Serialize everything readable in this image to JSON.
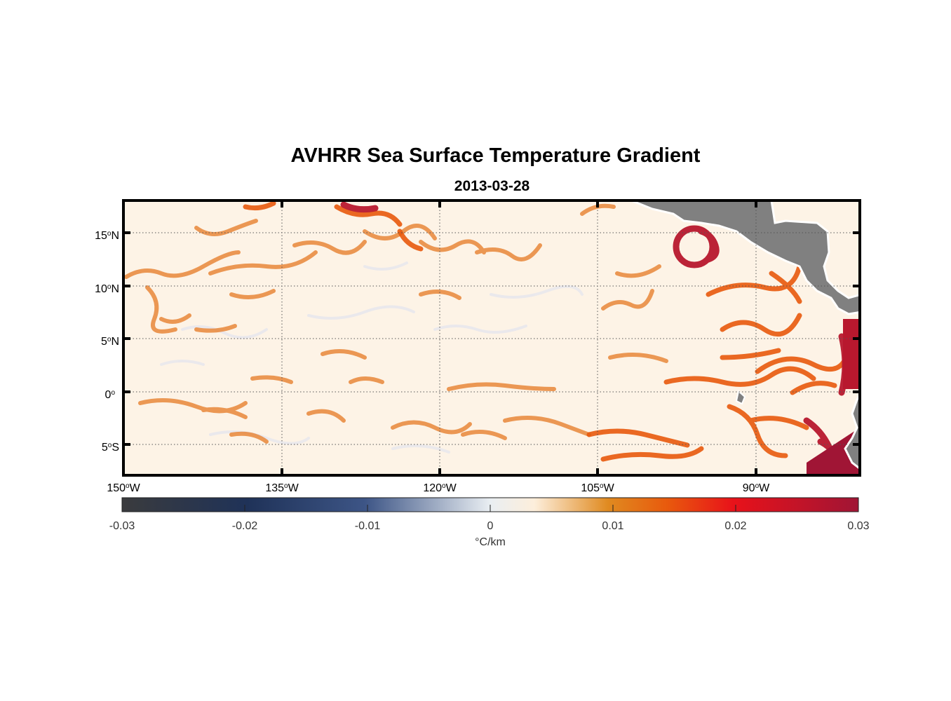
{
  "figure": {
    "title": "AVHRR Sea Surface Temperature Gradient",
    "subtitle": "2013-03-28"
  },
  "map": {
    "lon_labels": [
      "150",
      "135",
      "120",
      "105",
      "90"
    ],
    "lon_hemisphere": "W",
    "lat_labels": [
      {
        "value": "15",
        "hem": "N"
      },
      {
        "value": "10",
        "hem": "N"
      },
      {
        "value": "5",
        "hem": "N"
      },
      {
        "value": "0",
        "hem": ""
      },
      {
        "value": "5",
        "hem": "S"
      }
    ],
    "land_color": "#808080",
    "grid_style": "dotted"
  },
  "colorbar": {
    "ticks": [
      "-0.03",
      "-0.02",
      "-0.01",
      "0",
      "0.01",
      "0.02",
      "0.03"
    ],
    "units": "°C/km",
    "colors": [
      "#3a3b3d",
      "#1f3258",
      "#3d5586",
      "#e9eef2",
      "#fdeedb",
      "#e08a20",
      "#e85a0d",
      "#e8121a",
      "#a01535"
    ]
  },
  "chart_data": {
    "type": "heatmap",
    "title": "AVHRR Sea Surface Temperature Gradient",
    "subtitle": "2013-03-28",
    "x_label": "",
    "y_label": "",
    "xlim": [
      -150,
      -80
    ],
    "ylim": [
      -8,
      18
    ],
    "x_ticks": [
      -150,
      -135,
      -120,
      -105,
      -90
    ],
    "y_ticks": [
      15,
      10,
      5,
      0,
      -5
    ],
    "clim": [
      -0.03,
      0.03
    ],
    "units": "°C/km",
    "grid": true
  }
}
